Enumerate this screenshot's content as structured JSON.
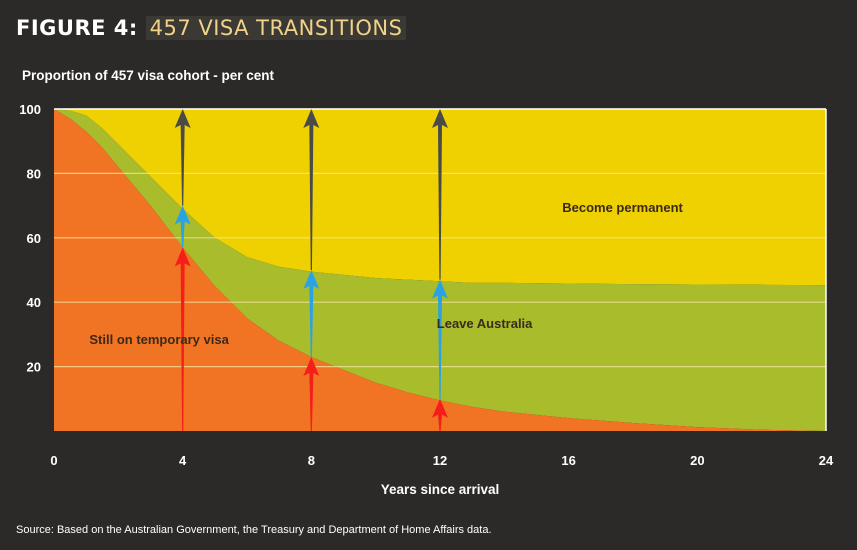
{
  "figure": {
    "label": "FIGURE 4",
    "separator": ":",
    "title": "457 VISA TRANSITIONS"
  },
  "source": "Source: Based on the Australian Government, the Treasury and Department of Home Affairs data.",
  "colors": {
    "temporary": "#f07424",
    "leave": "#a9bc2c",
    "permanent": "#efd000",
    "red_arrow": "#f51f1a",
    "blue_arrow": "#2aa2e6",
    "grey_arrow": "#4a4a48",
    "grid": "#f5e6a0",
    "background": "#2b2a28"
  },
  "chart_data": {
    "type": "area",
    "title": "457 VISA TRANSITIONS",
    "ylabel": "Proportion of 457 visa cohort - per cent",
    "xlabel": "Years since arrival",
    "xlim": [
      0,
      24
    ],
    "ylim": [
      0,
      100
    ],
    "xticks": [
      0,
      4,
      8,
      12,
      16,
      20,
      24
    ],
    "yticks": [
      20,
      40,
      60,
      80,
      100
    ],
    "grid": true,
    "x": [
      0,
      0.5,
      1,
      1.5,
      2,
      3,
      4,
      5,
      6,
      7,
      8,
      9,
      10,
      11,
      12,
      13,
      14,
      16,
      18,
      20,
      22,
      24
    ],
    "series": [
      {
        "name": "Still on temporary visa",
        "label_text": "Still on temporary visa",
        "values": [
          100,
          97,
          93,
          88,
          82,
          70,
          57,
          45,
          35,
          28,
          23,
          19,
          15,
          12,
          9.5,
          7.5,
          6,
          4,
          2.5,
          1.2,
          0.4,
          0
        ]
      },
      {
        "name": "Leave Australia",
        "label_text": "Leave Australia",
        "cumulative": [
          100,
          99.5,
          98,
          94,
          89,
          79,
          69,
          60,
          54,
          51,
          49.5,
          48.5,
          47.5,
          47,
          46.5,
          46,
          46,
          45.8,
          45.6,
          45.5,
          45.4,
          45.3
        ]
      },
      {
        "name": "Become permanent",
        "label_text": "Become permanent",
        "cumulative": [
          100,
          100,
          100,
          100,
          100,
          100,
          100,
          100,
          100,
          100,
          100,
          100,
          100,
          100,
          100,
          100,
          100,
          100,
          100,
          100,
          100,
          100
        ]
      }
    ],
    "arrows": [
      {
        "x": 4,
        "red": [
          0,
          57
        ],
        "blue": [
          57,
          70
        ],
        "grey": [
          70,
          100
        ]
      },
      {
        "x": 8,
        "red": [
          0,
          23
        ],
        "blue": [
          23,
          50
        ],
        "grey": [
          50,
          100
        ]
      },
      {
        "x": 12,
        "red": [
          0,
          10
        ],
        "blue": [
          10,
          47
        ],
        "grey": [
          47,
          100
        ]
      }
    ],
    "annotations": [
      {
        "text": "Still on temporary visa",
        "x": 1.1,
        "y": 27
      },
      {
        "text": "Leave Australia",
        "x": 11.9,
        "y": 32
      },
      {
        "text": "Become permanent",
        "x": 15.8,
        "y": 68
      }
    ]
  }
}
